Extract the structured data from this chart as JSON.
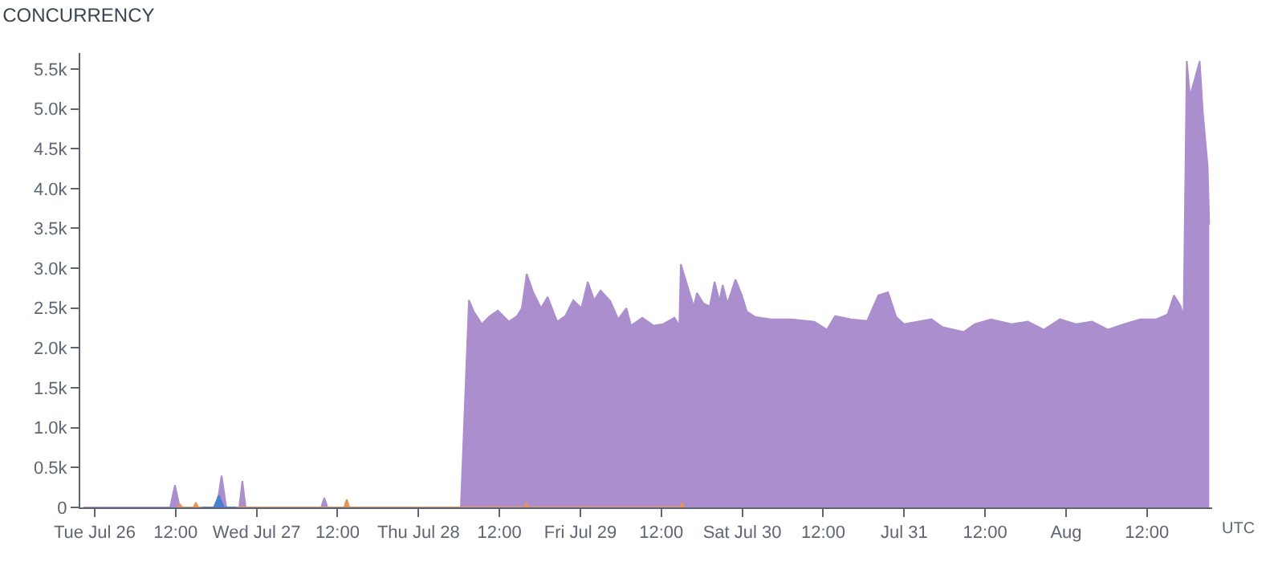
{
  "chart_data": {
    "type": "area",
    "title": "CONCURRENCY",
    "xlabel": "UTC",
    "x": [
      "--07-25T22:20",
      "--07-26T09:46",
      "--07-26T11:11",
      "--07-26T11:54",
      "--07-26T12:37",
      "--07-26T18:06",
      "--07-26T18:49",
      "--07-26T19:31",
      "--07-26T21:26",
      "--07-26T21:54",
      "--07-26T22:23",
      "--07-27T09:34",
      "--07-27T10:03",
      "--07-27T10:31",
      "--07-28T06:17",
      "--07-28T07:29",
      "--07-28T08:11",
      "--07-28T09:23",
      "--07-28T10:34",
      "--07-28T11:46",
      "--07-28T13:26",
      "--07-28T14:37",
      "--07-28T15:20",
      "--07-28T16:03",
      "--07-28T17:00",
      "--07-28T18:11",
      "--07-28T19:09",
      "--07-28T20:34",
      "--07-28T21:46",
      "--07-28T22:57",
      "--07-29T00:09",
      "--07-29T01:06",
      "--07-29T02:03",
      "--07-29T03:00",
      "--07-29T04:26",
      "--07-29T05:37",
      "--07-29T06:49",
      "--07-29T07:31",
      "--07-29T09:11",
      "--07-29T10:52",
      "--07-29T12:17",
      "--07-29T13:57",
      "--07-29T14:40",
      "--07-29T14:54",
      "--07-29T15:52",
      "--07-29T16:49",
      "--07-29T17:17",
      "--07-29T18:14",
      "--07-29T19:11",
      "--07-29T19:54",
      "--07-29T20:37",
      "--07-29T21:06",
      "--07-29T21:49",
      "--07-29T23:00",
      "--07-29T23:57",
      "--07-30T00:40",
      "--07-30T01:52",
      "--07-30T04:14",
      "--07-30T07:20",
      "--07-30T10:40",
      "--07-30T12:34",
      "--07-30T13:46",
      "--07-30T16:09",
      "--07-30T18:31",
      "--07-30T20:11",
      "--07-30T21:37",
      "--07-30T22:49",
      "--07-31T00:00",
      "--07-31T04:03",
      "--07-31T05:43",
      "--07-31T08:49",
      "--07-31T10:29",
      "--07-31T12:52",
      "--07-31T15:57",
      "--07-31T18:20",
      "--07-31T20:43",
      "--07-31T23:06",
      "--08-01T01:29",
      "--08-01T03:52",
      "--08-01T06:14",
      "--08-01T08:37",
      "--08-01T11:00",
      "--08-01T13:23",
      "--08-01T15:03",
      "--08-01T16:00",
      "--08-01T16:57",
      "--08-01T17:26",
      "--08-01T17:54",
      "--08-01T18:23",
      "--08-01T18:51",
      "--08-01T19:49",
      "--08-01T20:17",
      "--08-01T21:00",
      "--08-01T21:14"
    ],
    "series": [
      {
        "color": "#ab8ecd",
        "values": [
          0,
          0,
          0,
          280,
          0,
          0,
          400,
          0,
          0,
          330,
          0,
          0,
          120,
          0,
          0,
          2600,
          2460,
          2300,
          2400,
          2470,
          2330,
          2400,
          2500,
          2930,
          2700,
          2500,
          2640,
          2330,
          2400,
          2600,
          2500,
          2830,
          2600,
          2720,
          2590,
          2360,
          2500,
          2280,
          2380,
          2280,
          2300,
          2380,
          2280,
          3050,
          2780,
          2520,
          2690,
          2560,
          2520,
          2830,
          2590,
          2790,
          2560,
          2860,
          2660,
          2460,
          2390,
          2360,
          2360,
          2330,
          2230,
          2400,
          2360,
          2340,
          2660,
          2700,
          2390,
          2300,
          2360,
          2260,
          2200,
          2300,
          2360,
          2300,
          2330,
          2230,
          2360,
          2300,
          2330,
          2230,
          2300,
          2360,
          2360,
          2420,
          2660,
          2530,
          2400,
          5600,
          5160,
          5300,
          5600,
          4960,
          4280,
          3550
        ]
      },
      {
        "color": "#e8935a",
        "x": [
          "--07-26T12:15",
          "--07-26T12:37",
          "--07-26T13:00",
          "--07-26T14:40",
          "--07-26T15:00",
          "--07-26T15:20",
          "--07-26T18:00",
          "--07-26T18:20",
          "--07-26T18:40",
          "--07-27T13:00",
          "--07-27T13:22",
          "--07-27T13:45",
          "--07-28T15:45",
          "--07-28T16:00",
          "--07-28T16:15",
          "--07-29T14:50",
          "--07-29T15:05",
          "--07-29T15:20"
        ],
        "values": [
          0,
          40,
          0,
          0,
          60,
          0,
          0,
          150,
          0,
          0,
          100,
          0,
          0,
          60,
          0,
          0,
          60,
          0
        ]
      },
      {
        "color": "#4a7fd4",
        "x": [
          "--07-26T16:00",
          "--07-26T17:40",
          "--07-26T18:25",
          "--07-26T19:10",
          "--07-26T21:00"
        ],
        "values": [
          0,
          0,
          150,
          0,
          0
        ]
      }
    ],
    "xlim": [
      "--07-25T21:52",
      "--08-01T21:40"
    ],
    "xticks": [
      {
        "value": "--07-26",
        "label": "Tue Jul 26"
      },
      {
        "value": "--07-26T12:00",
        "label": "12:00"
      },
      {
        "value": "--07-27",
        "label": "Wed Jul 27"
      },
      {
        "value": "--07-27T12:00",
        "label": "12:00"
      },
      {
        "value": "--07-28",
        "label": "Thu Jul 28"
      },
      {
        "value": "--07-28T12:00",
        "label": "12:00"
      },
      {
        "value": "--07-29",
        "label": "Fri Jul 29"
      },
      {
        "value": "--07-29T12:00",
        "label": "12:00"
      },
      {
        "value": "--07-30",
        "label": "Sat Jul 30"
      },
      {
        "value": "--07-30T12:00",
        "label": "12:00"
      },
      {
        "value": "--07-31",
        "label": "Jul 31"
      },
      {
        "value": "--07-31T12:00",
        "label": "12:00"
      },
      {
        "value": "--08-01",
        "label": "Aug"
      },
      {
        "value": "--08-01T12:00",
        "label": "12:00"
      }
    ],
    "ylim": [
      0,
      5700
    ],
    "yticks": [
      0,
      {
        "value": 500,
        "label": "0.5k"
      },
      {
        "value": 1000,
        "label": "1.0k"
      },
      {
        "value": 1500,
        "label": "1.5k"
      },
      {
        "value": 2000,
        "label": "2.0k"
      },
      {
        "value": 2500,
        "label": "2.5k"
      },
      {
        "value": 3000,
        "label": "3.0k"
      },
      {
        "value": 3500,
        "label": "3.5k"
      },
      {
        "value": 4000,
        "label": "4.0k"
      },
      {
        "value": 4500,
        "label": "4.5k"
      },
      {
        "value": 5000,
        "label": "5.0k"
      },
      {
        "value": 5500,
        "label": "5.5k"
      }
    ]
  }
}
